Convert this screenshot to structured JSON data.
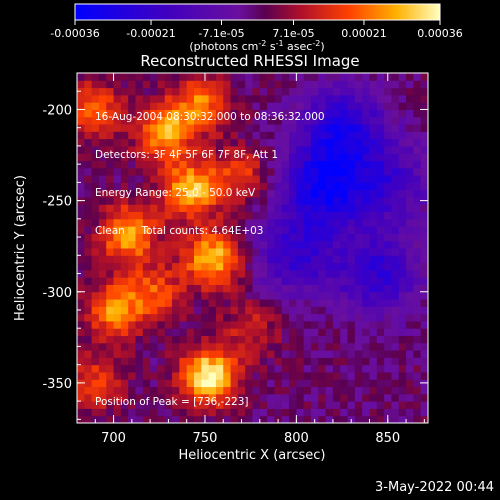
{
  "chart_data": {
    "type": "heatmap",
    "title": "Reconstructed RHESSI Image",
    "xlabel": "Heliocentric X (arcsec)",
    "ylabel": "Heliocentric Y (arcsec)",
    "xlim": [
      680,
      872
    ],
    "ylim": [
      -372,
      -180
    ],
    "x_ticks": [
      700,
      750,
      800,
      850
    ],
    "y_ticks": [
      -200,
      -250,
      -300,
      -350
    ],
    "colorbar": {
      "tick_labels": [
        "-0.00036",
        "-0.00021",
        "-7.1e-05",
        "7.1e-05",
        "0.00021",
        "0.00036"
      ],
      "tick_values": [
        -0.00036,
        -0.00021,
        -7.1e-05,
        7.1e-05,
        0.00021,
        0.00036
      ],
      "range": [
        -0.00036,
        0.00036
      ],
      "units_line1": "(photons cm",
      "units_exp1": "-2",
      "units_mid": " s",
      "units_exp2": "-1",
      "units_mid2": " asec",
      "units_exp3": "-2",
      "units_end": ")"
    },
    "annotations": [
      "16-Aug-2004 08:30:32.000 to 08:36:32.000",
      "Detectors: 3F 4F 5F 6F 7F 8F, Att 1",
      "Energy Range: 25.0 - 50.0 keV",
      "Clean     Total counts: 4.64E+03"
    ],
    "peak_label": "Position of Peak = [736,-223]",
    "sources": [
      {
        "x": 752,
        "y": -346,
        "intensity": 0.00036
      },
      {
        "x": 742,
        "y": -244,
        "intensity": 0.0003
      },
      {
        "x": 754,
        "y": -282,
        "intensity": 0.0003
      },
      {
        "x": 708,
        "y": -268,
        "intensity": 0.00028
      },
      {
        "x": 728,
        "y": -212,
        "intensity": 0.00026
      },
      {
        "x": 700,
        "y": -310,
        "intensity": 0.00024
      },
      {
        "x": 748,
        "y": -196,
        "intensity": 0.00022
      },
      {
        "x": 690,
        "y": -200,
        "intensity": 0.0002
      },
      {
        "x": 722,
        "y": -300,
        "intensity": 0.00018
      },
      {
        "x": 690,
        "y": -350,
        "intensity": 0.00016
      },
      {
        "x": 770,
        "y": -236,
        "intensity": 0.00016
      },
      {
        "x": 775,
        "y": -320,
        "intensity": 0.00012
      },
      {
        "x": 815,
        "y": -243,
        "intensity": -0.0003
      },
      {
        "x": 825,
        "y": -210,
        "intensity": -0.00026
      },
      {
        "x": 845,
        "y": -290,
        "intensity": -0.00022
      },
      {
        "x": 800,
        "y": -280,
        "intensity": -0.0002
      },
      {
        "x": 850,
        "y": -240,
        "intensity": -0.00018
      }
    ]
  },
  "footer": {
    "date": "3-May-2022 00:44"
  }
}
